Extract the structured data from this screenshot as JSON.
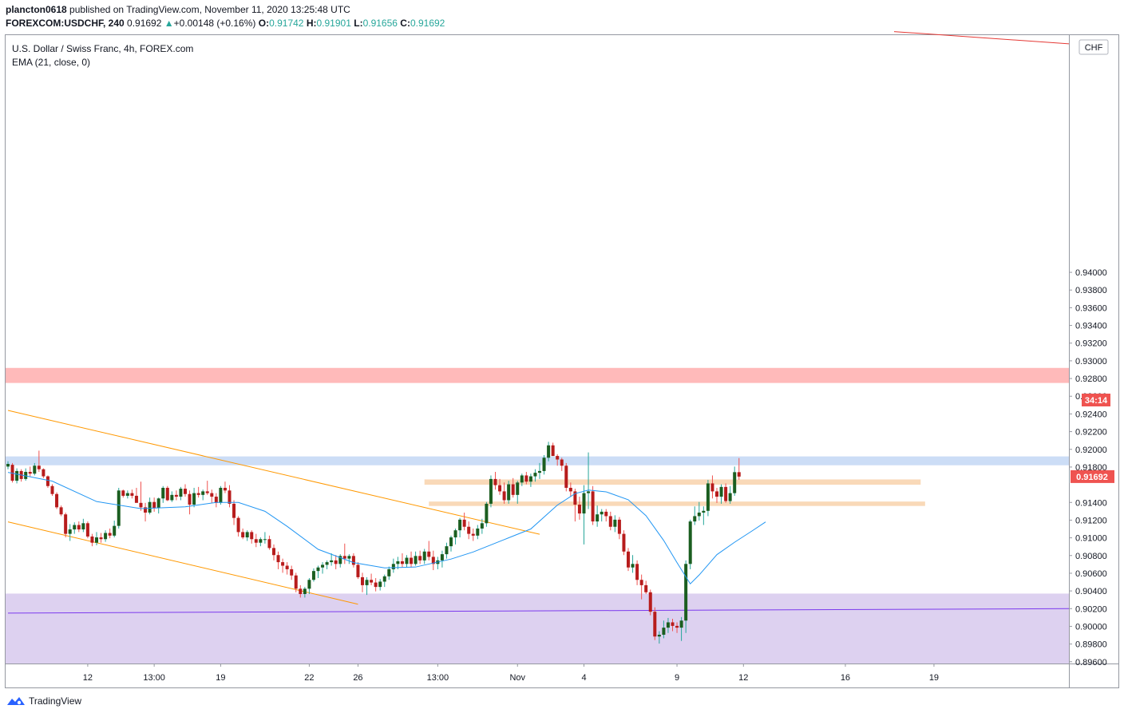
{
  "header": {
    "publisher": "plancton0618",
    "published_text": "published on TradingView.com, November 11, 2020 13:25:48 UTC",
    "symbol": "FOREXCOM:USDCHF, 240",
    "last": "0.91692",
    "change": "+0.00148 (+0.16%)",
    "o_label": "O:",
    "o_value": "0.91742",
    "h_label": "H:",
    "h_value": "0.91901",
    "l_label": "L:",
    "l_value": "0.91656",
    "c_label": "C:",
    "c_value": "0.91692"
  },
  "legend": {
    "title": "U.S. Dollar / Swiss Franc, 4h, FOREX.com",
    "indicator": "EMA (21, close, 0)"
  },
  "footer": {
    "brand": "TradingView"
  },
  "colors": {
    "up": "#26a69a",
    "down": "#ef5350",
    "candle_up_body": "#1b5e20",
    "candle_down_body": "#b71c1c",
    "ema": "#2196f3",
    "red_zone": "#ffb3b3",
    "blue_zone": "#c7d9f5",
    "orange_zone": "#f8d5b0",
    "purple_zone": "#d9ccee",
    "orange_line": "#ff9800",
    "purple_line": "#7c3aed",
    "red_line": "#e53935"
  },
  "chart_data": {
    "type": "candlestick",
    "currency": "CHF",
    "ylim": [
      0.8958,
      0.9668
    ],
    "y_ticks": [
      "0.94000",
      "0.93800",
      "0.93600",
      "0.93400",
      "0.93200",
      "0.93000",
      "0.92800",
      "0.92600",
      "0.92400",
      "0.92200",
      "0.92000",
      "0.91800",
      "0.91400",
      "0.91200",
      "0.91000",
      "0.90800",
      "0.90600",
      "0.90400",
      "0.90200",
      "0.90000",
      "0.89800",
      "0.89600"
    ],
    "y_tick_values": [
      0.94,
      0.938,
      0.936,
      0.934,
      0.932,
      0.93,
      0.928,
      0.926,
      0.924,
      0.922,
      0.92,
      0.918,
      0.914,
      0.912,
      0.91,
      0.908,
      0.906,
      0.904,
      0.902,
      0.9,
      0.898,
      0.896
    ],
    "x_labels": [
      "12",
      "13:00",
      "19",
      "22",
      "26",
      "13:00",
      "Nov",
      "4",
      "9",
      "12",
      "16",
      "19"
    ],
    "x_label_bars": [
      18,
      33,
      48,
      68,
      79,
      97,
      115,
      130,
      151,
      166,
      189,
      209
    ],
    "last_price_label": "0.91692",
    "countdown_label": "34:14",
    "zones": [
      {
        "name": "resistance",
        "y1": 0.9275,
        "y2": 0.9292
      },
      {
        "name": "supply",
        "y1": 0.9182,
        "y2": 0.9192
      },
      {
        "name": "support-upper",
        "y1": 0.916,
        "y2": 0.9166,
        "x1": 94,
        "x2": 206
      },
      {
        "name": "support-lower",
        "y1": 0.9136,
        "y2": 0.9141,
        "x1": 95,
        "x2": 207
      },
      {
        "name": "demand",
        "y1": 0.8958,
        "y2": 0.9037
      }
    ],
    "trendlines": [
      {
        "name": "channel-upper",
        "x1": 0,
        "y1": 0.9244,
        "x2": 120,
        "y2": 0.9104
      },
      {
        "name": "channel-lower",
        "x1": 0,
        "y1": 0.9118,
        "x2": 79,
        "y2": 0.9025
      },
      {
        "name": "purple-trendline",
        "x1": 0,
        "y1": 0.9015,
        "x2": 240,
        "y2": 0.902
      },
      {
        "name": "red-trendline",
        "x1": 200,
        "y1": 0.9672,
        "x2": 240,
        "y2": 0.9658
      }
    ],
    "candles": [
      [
        0.91805,
        0.91865,
        0.91775,
        0.91835
      ],
      [
        0.91825,
        0.91845,
        0.91625,
        0.91645
      ],
      [
        0.91645,
        0.91785,
        0.91615,
        0.91755
      ],
      [
        0.91755,
        0.91775,
        0.91635,
        0.91665
      ],
      [
        0.91665,
        0.91785,
        0.91645,
        0.91745
      ],
      [
        0.91745,
        0.91805,
        0.91695,
        0.91725
      ],
      [
        0.91725,
        0.91845,
        0.91705,
        0.91815
      ],
      [
        0.91815,
        0.91985,
        0.91745,
        0.91775
      ],
      [
        0.91775,
        0.91785,
        0.91675,
        0.91695
      ],
      [
        0.91695,
        0.91705,
        0.91565,
        0.91585
      ],
      [
        0.91585,
        0.91605,
        0.91475,
        0.91495
      ],
      [
        0.91495,
        0.91515,
        0.91325,
        0.91345
      ],
      [
        0.91345,
        0.91365,
        0.91245,
        0.91265
      ],
      [
        0.91265,
        0.91285,
        0.91005,
        0.91045
      ],
      [
        0.91045,
        0.91155,
        0.90965,
        0.91095
      ],
      [
        0.91095,
        0.91175,
        0.91045,
        0.91145
      ],
      [
        0.91145,
        0.91185,
        0.91065,
        0.91095
      ],
      [
        0.91095,
        0.91215,
        0.91065,
        0.91165
      ],
      [
        0.91165,
        0.91185,
        0.90995,
        0.91015
      ],
      [
        0.91015,
        0.91045,
        0.90905,
        0.90945
      ],
      [
        0.90945,
        0.91065,
        0.90915,
        0.91005
      ],
      [
        0.91005,
        0.91055,
        0.90945,
        0.90985
      ],
      [
        0.90985,
        0.91085,
        0.90955,
        0.91055
      ],
      [
        0.91055,
        0.91105,
        0.90995,
        0.91025
      ],
      [
        0.91025,
        0.91195,
        0.91005,
        0.91135
      ],
      [
        0.91135,
        0.91565,
        0.91105,
        0.91535
      ],
      [
        0.91535,
        0.91545,
        0.91455,
        0.91475
      ],
      [
        0.91475,
        0.91535,
        0.91445,
        0.91505
      ],
      [
        0.91505,
        0.91545,
        0.91445,
        0.91475
      ],
      [
        0.91475,
        0.91565,
        0.91435,
        0.91395
      ],
      [
        0.91395,
        0.91635,
        0.91305,
        0.91345
      ],
      [
        0.91345,
        0.91395,
        0.91185,
        0.91285
      ],
      [
        0.91285,
        0.91455,
        0.91265,
        0.91405
      ],
      [
        0.91405,
        0.91455,
        0.91295,
        0.91335
      ],
      [
        0.91335,
        0.91455,
        0.91275,
        0.91445
      ],
      [
        0.91445,
        0.91585,
        0.91395,
        0.91565
      ],
      [
        0.91565,
        0.91585,
        0.91415,
        0.91425
      ],
      [
        0.91425,
        0.91525,
        0.91405,
        0.91485
      ],
      [
        0.91485,
        0.91535,
        0.91425,
        0.91465
      ],
      [
        0.91465,
        0.91575,
        0.91425,
        0.91555
      ],
      [
        0.91555,
        0.91605,
        0.91465,
        0.91495
      ],
      [
        0.91495,
        0.91535,
        0.91265,
        0.91375
      ],
      [
        0.91375,
        0.91565,
        0.91345,
        0.91505
      ],
      [
        0.91505,
        0.91575,
        0.91455,
        0.91485
      ],
      [
        0.91485,
        0.91545,
        0.91425,
        0.91525
      ],
      [
        0.91525,
        0.91645,
        0.91485,
        0.91505
      ],
      [
        0.91505,
        0.91545,
        0.91395,
        0.91465
      ],
      [
        0.91465,
        0.91505,
        0.91345,
        0.91395
      ],
      [
        0.91395,
        0.91585,
        0.91375,
        0.91565
      ],
      [
        0.91565,
        0.91635,
        0.91505,
        0.91535
      ],
      [
        0.91535,
        0.91595,
        0.91345,
        0.91385
      ],
      [
        0.91385,
        0.91425,
        0.91145,
        0.91225
      ],
      [
        0.91225,
        0.91245,
        0.91015,
        0.91065
      ],
      [
        0.91065,
        0.91105,
        0.90985,
        0.91005
      ],
      [
        0.91005,
        0.91085,
        0.90965,
        0.91065
      ],
      [
        0.91065,
        0.91085,
        0.90935,
        0.90985
      ],
      [
        0.90985,
        0.91045,
        0.90895,
        0.90945
      ],
      [
        0.90945,
        0.91005,
        0.90905,
        0.90985
      ],
      [
        0.90985,
        0.91065,
        0.90935,
        0.90985
      ],
      [
        0.90985,
        0.91025,
        0.90865,
        0.90885
      ],
      [
        0.90885,
        0.90925,
        0.90745,
        0.90805
      ],
      [
        0.90805,
        0.90845,
        0.90645,
        0.90725
      ],
      [
        0.90725,
        0.90765,
        0.90605,
        0.90685
      ],
      [
        0.90685,
        0.90725,
        0.90585,
        0.90645
      ],
      [
        0.90645,
        0.90685,
        0.90525,
        0.90575
      ],
      [
        0.90575,
        0.90605,
        0.90385,
        0.90425
      ],
      [
        0.90425,
        0.90465,
        0.90325,
        0.90365
      ],
      [
        0.90365,
        0.90445,
        0.90325,
        0.90425
      ],
      [
        0.90425,
        0.90545,
        0.90365,
        0.90525
      ],
      [
        0.90525,
        0.90655,
        0.90505,
        0.90625
      ],
      [
        0.90625,
        0.90685,
        0.90545,
        0.90665
      ],
      [
        0.90665,
        0.90725,
        0.90595,
        0.90695
      ],
      [
        0.90695,
        0.90745,
        0.90645,
        0.90725
      ],
      [
        0.90725,
        0.90825,
        0.90685,
        0.90745
      ],
      [
        0.90745,
        0.90805,
        0.90645,
        0.90705
      ],
      [
        0.90705,
        0.90815,
        0.90665,
        0.90795
      ],
      [
        0.90795,
        0.90935,
        0.90705,
        0.90765
      ],
      [
        0.90765,
        0.90815,
        0.90705,
        0.90795
      ],
      [
        0.90795,
        0.90825,
        0.90665,
        0.90695
      ],
      [
        0.90695,
        0.90725,
        0.90535,
        0.90555
      ],
      [
        0.90555,
        0.90605,
        0.90385,
        0.90465
      ],
      [
        0.90465,
        0.90555,
        0.90355,
        0.90525
      ],
      [
        0.90525,
        0.90595,
        0.90465,
        0.90495
      ],
      [
        0.90495,
        0.90545,
        0.90395,
        0.90445
      ],
      [
        0.90445,
        0.90535,
        0.90405,
        0.90505
      ],
      [
        0.90505,
        0.90585,
        0.90445,
        0.90565
      ],
      [
        0.90565,
        0.90675,
        0.90525,
        0.90645
      ],
      [
        0.90645,
        0.90765,
        0.90605,
        0.90705
      ],
      [
        0.90705,
        0.90785,
        0.90645,
        0.90735
      ],
      [
        0.90735,
        0.90825,
        0.90665,
        0.90705
      ],
      [
        0.90705,
        0.90805,
        0.90665,
        0.90775
      ],
      [
        0.90775,
        0.90845,
        0.90665,
        0.90705
      ],
      [
        0.90705,
        0.90845,
        0.90685,
        0.90795
      ],
      [
        0.90795,
        0.90855,
        0.90705,
        0.90745
      ],
      [
        0.90745,
        0.90875,
        0.90705,
        0.90845
      ],
      [
        0.90845,
        0.90965,
        0.90745,
        0.90785
      ],
      [
        0.90785,
        0.90855,
        0.90635,
        0.90705
      ],
      [
        0.90705,
        0.90785,
        0.90645,
        0.90745
      ],
      [
        0.90745,
        0.90855,
        0.90665,
        0.90815
      ],
      [
        0.90815,
        0.90945,
        0.90765,
        0.90905
      ],
      [
        0.90905,
        0.91025,
        0.90845,
        0.91005
      ],
      [
        0.91005,
        0.91105,
        0.90925,
        0.91085
      ],
      [
        0.91085,
        0.91225,
        0.91005,
        0.91205
      ],
      [
        0.91205,
        0.91285,
        0.91085,
        0.91125
      ],
      [
        0.91125,
        0.91185,
        0.90985,
        0.91045
      ],
      [
        0.91045,
        0.91105,
        0.90965,
        0.91025
      ],
      [
        0.91025,
        0.91145,
        0.90985,
        0.91105
      ],
      [
        0.91105,
        0.91215,
        0.91045,
        0.91165
      ],
      [
        0.91165,
        0.91405,
        0.91125,
        0.91385
      ],
      [
        0.91385,
        0.91705,
        0.91345,
        0.91665
      ],
      [
        0.91665,
        0.91745,
        0.91545,
        0.91595
      ],
      [
        0.91595,
        0.91665,
        0.91485,
        0.91525
      ],
      [
        0.91525,
        0.91625,
        0.91385,
        0.91425
      ],
      [
        0.91425,
        0.91645,
        0.91385,
        0.91605
      ],
      [
        0.91605,
        0.91675,
        0.91455,
        0.91485
      ],
      [
        0.91485,
        0.91645,
        0.91385,
        0.91625
      ],
      [
        0.91625,
        0.91725,
        0.91585,
        0.91705
      ],
      [
        0.91705,
        0.91745,
        0.91605,
        0.91635
      ],
      [
        0.91635,
        0.91725,
        0.91575,
        0.91695
      ],
      [
        0.91695,
        0.91775,
        0.91635,
        0.91735
      ],
      [
        0.91735,
        0.91845,
        0.91665,
        0.91755
      ],
      [
        0.91755,
        0.91935,
        0.91715,
        0.91905
      ],
      [
        0.91905,
        0.92085,
        0.91865,
        0.92045
      ],
      [
        0.92045,
        0.92075,
        0.91925,
        0.91925
      ],
      [
        0.91925,
        0.91945,
        0.91815,
        0.91885
      ],
      [
        0.91885,
        0.91905,
        0.91755,
        0.91815
      ],
      [
        0.91815,
        0.91845,
        0.91525,
        0.91565
      ],
      [
        0.91565,
        0.91625,
        0.91465,
        0.91525
      ],
      [
        0.91525,
        0.91555,
        0.91185,
        0.91375
      ],
      [
        0.91375,
        0.91465,
        0.91205,
        0.91275
      ],
      [
        0.91275,
        0.91595,
        0.90925,
        0.91505
      ],
      [
        0.91505,
        0.91965,
        0.91325,
        0.91525
      ],
      [
        0.91525,
        0.91585,
        0.91145,
        0.91185
      ],
      [
        0.91185,
        0.91365,
        0.91125,
        0.91265
      ],
      [
        0.91265,
        0.91325,
        0.91185,
        0.91295
      ],
      [
        0.91295,
        0.91325,
        0.91185,
        0.91245
      ],
      [
        0.91245,
        0.91295,
        0.91085,
        0.91125
      ],
      [
        0.91125,
        0.91255,
        0.91065,
        0.91205
      ],
      [
        0.91205,
        0.91235,
        0.90985,
        0.91045
      ],
      [
        0.91045,
        0.91085,
        0.90805,
        0.90845
      ],
      [
        0.90845,
        0.90885,
        0.90625,
        0.90665
      ],
      [
        0.90665,
        0.90805,
        0.90605,
        0.90705
      ],
      [
        0.90705,
        0.90745,
        0.90465,
        0.90525
      ],
      [
        0.90525,
        0.90585,
        0.90305,
        0.90465
      ],
      [
        0.90465,
        0.90515,
        0.90365,
        0.90385
      ],
      [
        0.90385,
        0.90415,
        0.90125,
        0.90165
      ],
      [
        0.90165,
        0.90215,
        0.89845,
        0.89885
      ],
      [
        0.89885,
        0.89945,
        0.89805,
        0.89905
      ],
      [
        0.89905,
        0.90065,
        0.89865,
        0.89985
      ],
      [
        0.89985,
        0.90095,
        0.89925,
        0.90045
      ],
      [
        0.90045,
        0.90085,
        0.89945,
        0.90005
      ],
      [
        0.90005,
        0.90045,
        0.89925,
        0.89985
      ],
      [
        0.89985,
        0.90105,
        0.89835,
        0.90065
      ],
      [
        0.90065,
        0.90745,
        0.89925,
        0.90705
      ],
      [
        0.90705,
        0.91205,
        0.90645,
        0.91185
      ],
      [
        0.91185,
        0.91355,
        0.91145,
        0.91245
      ],
      [
        0.91245,
        0.91405,
        0.91195,
        0.91285
      ],
      [
        0.91285,
        0.91355,
        0.91145,
        0.91305
      ],
      [
        0.91305,
        0.91655,
        0.91245,
        0.91615
      ],
      [
        0.91615,
        0.91705,
        0.91445,
        0.91525
      ],
      [
        0.91525,
        0.91565,
        0.91395,
        0.91465
      ],
      [
        0.91465,
        0.91605,
        0.91385,
        0.91575
      ],
      [
        0.91575,
        0.91615,
        0.91395,
        0.91415
      ],
      [
        0.91415,
        0.91585,
        0.91385,
        0.91505
      ],
      [
        0.91505,
        0.91805,
        0.91475,
        0.91742
      ],
      [
        0.91742,
        0.91901,
        0.91656,
        0.91692
      ]
    ],
    "ema_points": [
      [
        0,
        0.9174
      ],
      [
        10,
        0.9164
      ],
      [
        20,
        0.9141
      ],
      [
        30,
        0.9133
      ],
      [
        40,
        0.9135
      ],
      [
        47,
        0.914
      ],
      [
        52,
        0.914
      ],
      [
        58,
        0.913
      ],
      [
        63,
        0.9113
      ],
      [
        70,
        0.9087
      ],
      [
        78,
        0.9072
      ],
      [
        85,
        0.9066
      ],
      [
        92,
        0.9067
      ],
      [
        100,
        0.9076
      ],
      [
        105,
        0.9084
      ],
      [
        112,
        0.9098
      ],
      [
        118,
        0.911
      ],
      [
        124,
        0.9137
      ],
      [
        128,
        0.915
      ],
      [
        131,
        0.9154
      ],
      [
        135,
        0.9152
      ],
      [
        140,
        0.9143
      ],
      [
        144,
        0.9125
      ],
      [
        148,
        0.9097
      ],
      [
        151,
        0.9072
      ],
      [
        154,
        0.9048
      ],
      [
        156,
        0.9058
      ],
      [
        160,
        0.9081
      ],
      [
        164,
        0.9095
      ],
      [
        168,
        0.9108
      ],
      [
        171,
        0.9118
      ]
    ]
  }
}
